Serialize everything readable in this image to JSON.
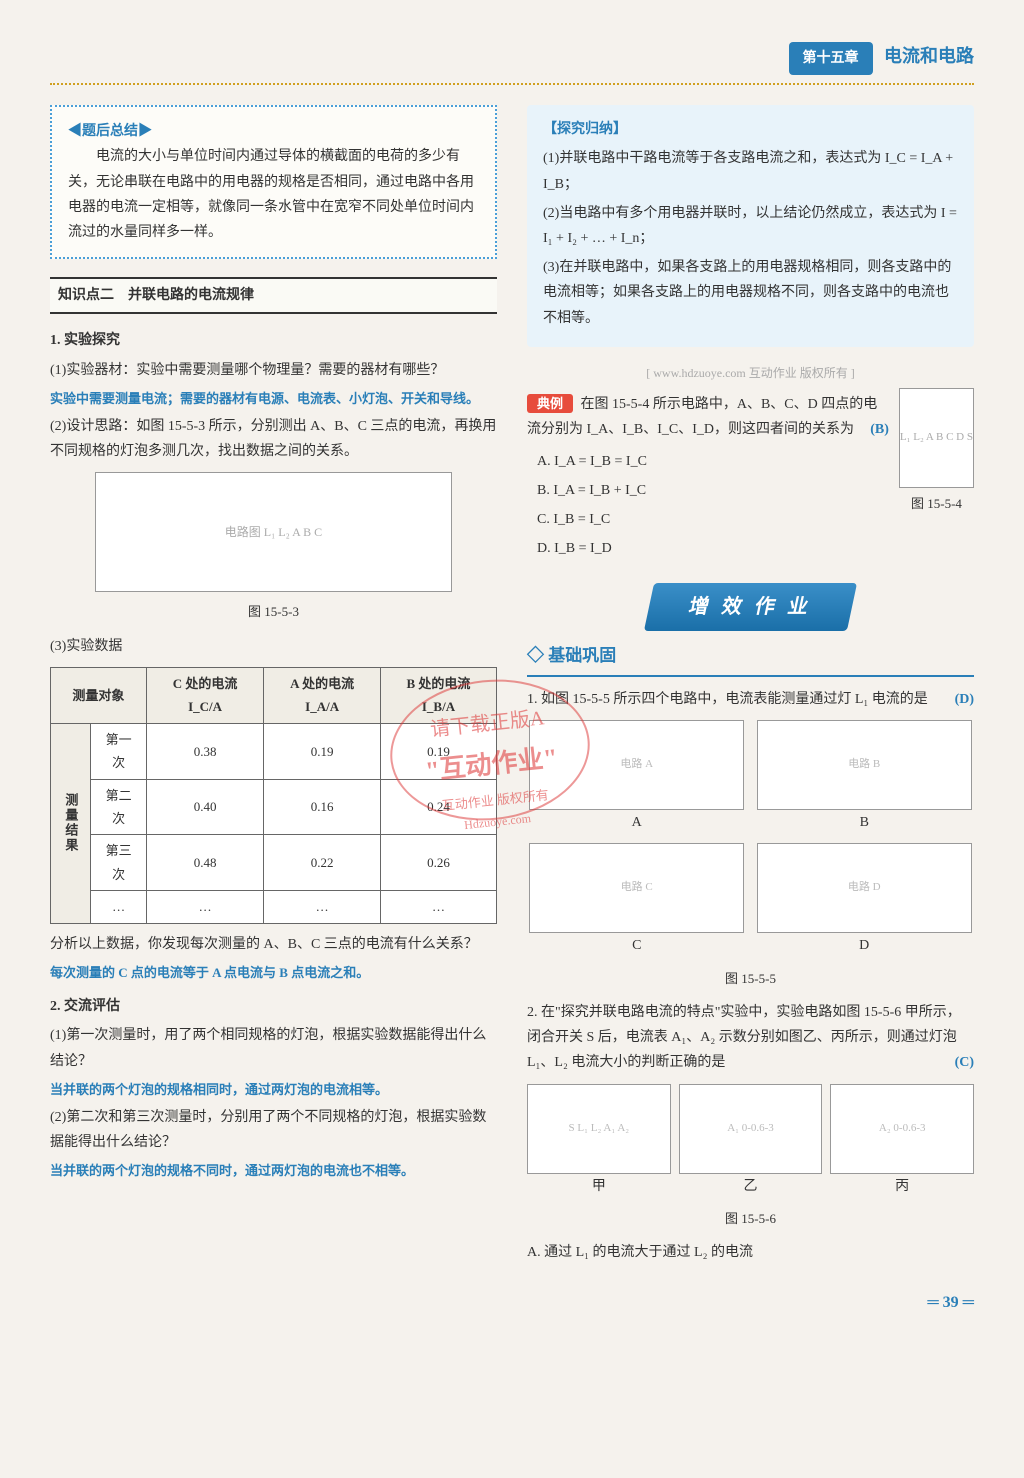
{
  "header": {
    "chapter_tag": "第十五章",
    "chapter_name": "电流和电路"
  },
  "left": {
    "summary": {
      "title": "◀题后总结▶",
      "body": "电流的大小与单位时间内通过导体的横截面的电荷的多少有关，无论串联在电路中的用电器的规格是否相同，通过电路中各用电器的电流一定相等，就像同一条水管中在宽窄不同处单位时间内流过的水量同样多一样。"
    },
    "kp_label": "知识点二　并联电路的电流规律",
    "exp_title": "1. 实验探究",
    "item1": "(1)实验器材：实验中需要测量哪个物理量？需要的器材有哪些？",
    "ans1": "实验中需要测量电流；需要的器材有电源、电流表、小灯泡、开关和导线。",
    "item2": "(2)设计思路：如图 15-5-3 所示，分别测出 A、B、C 三点的电流，再换用不同规格的灯泡多测几次，找出数据之间的关系。",
    "fig3_caption": "图 15-5-3",
    "fig3_label": "电路图 L₁ L₂ A B C",
    "item3_label": "(3)实验数据",
    "table": {
      "headers": [
        "测量对象",
        "C 处的电流 I_C/A",
        "A 处的电流 I_A/A",
        "B 处的电流 I_B/A"
      ],
      "group_label": "测量结果",
      "rows": [
        [
          "第一次",
          "0.38",
          "0.19",
          "0.19"
        ],
        [
          "第二次",
          "0.40",
          "0.16",
          "0.24"
        ],
        [
          "第三次",
          "0.48",
          "0.22",
          "0.26"
        ],
        [
          "…",
          "…",
          "…",
          "…"
        ]
      ]
    },
    "analysis_q": "分析以上数据，你发现每次测量的 A、B、C 三点的电流有什么关系？",
    "analysis_a": "每次测量的 C 点的电流等于 A 点电流与 B 点电流之和。",
    "eval_title": "2. 交流评估",
    "eval_q1": "(1)第一次测量时，用了两个相同规格的灯泡，根据实验数据能得出什么结论？",
    "eval_a1": "当并联的两个灯泡的规格相同时，通过两灯泡的电流相等。",
    "eval_q2": "(2)第二次和第三次测量时，分别用了两个不同规格的灯泡，根据实验数据能得出什么结论？",
    "eval_a2": "当并联的两个灯泡的规格不同时，通过两灯泡的电流也不相等。"
  },
  "right": {
    "explore": {
      "title": "【探究归纳】",
      "p1": "(1)并联电路中干路电流等于各支路电流之和，表达式为 I_C = I_A + I_B；",
      "p2": "(2)当电路中有多个用电器并联时，以上结论仍然成立，表达式为 I = I₁ + I₂ + … + I_n；",
      "p3": "(3)在并联电路中，如果各支路上的用电器规格相同，则各支路中的电流相等；如果各支路上的用电器规格不同，则各支路中的电流也不相等。"
    },
    "watermark": "[ www.hdzuoye.com 互动作业 版权所有 ]",
    "example": {
      "tag": "典例",
      "stem": "在图 15-5-4 所示电路中，A、B、C、D 四点的电流分别为 I_A、I_B、I_C、I_D，则这四者间的关系为",
      "answer": "(B)",
      "opts": [
        "A. I_A = I_B = I_C",
        "B. I_A = I_B + I_C",
        "C. I_B = I_C",
        "D. I_B = I_D"
      ],
      "fig_caption": "图 15-5-4",
      "fig_label": "L₁ L₂ A B C D S"
    },
    "banner": "增 效 作 业",
    "sub_banner": "◇ 基础巩固",
    "q1": {
      "stem": "1. 如图 15-5-5 所示四个电路中，电流表能测量通过灯 L₁ 电流的是",
      "answer": "(D)",
      "labels": [
        "A",
        "B",
        "C",
        "D"
      ],
      "fig_caption": "图 15-5-5"
    },
    "q2": {
      "stem": "2. 在\"探究并联电路电流的特点\"实验中，实验电路如图 15-5-6 甲所示，闭合开关 S 后，电流表 A₁、A₂ 示数分别如图乙、丙所示，则通过灯泡 L₁、L₂ 电流大小的判断正确的是",
      "answer": "(C)",
      "sub_labels": [
        "甲",
        "乙",
        "丙"
      ],
      "fig_caption": "图 15-5-6",
      "optA": "A. 通过 L₁ 的电流大于通过 L₂ 的电流"
    }
  },
  "stamp": {
    "line1": "请下载正版A",
    "line2": "\"互动作业\"",
    "line3": "互动作业 版权所有",
    "line4": "Hdzuoye.com"
  },
  "page_number": "39"
}
